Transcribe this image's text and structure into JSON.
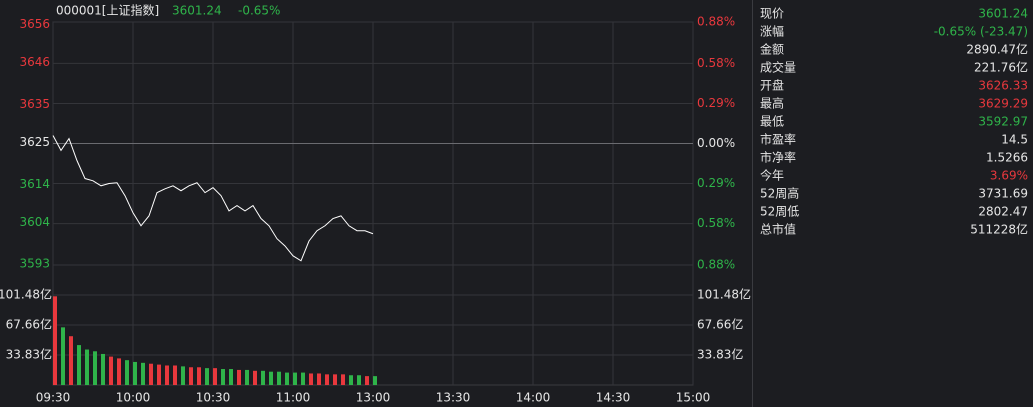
{
  "chart_data": {
    "type": "line",
    "title": "000001[上证指数]",
    "price_text": "3601.24",
    "change_text": "-0.65%",
    "up_color": "#e8383d",
    "down_color": "#2fb44a",
    "flat_color": "#e6e6e6",
    "x": [
      "09:30",
      "09:33",
      "09:36",
      "09:39",
      "09:42",
      "09:45",
      "09:48",
      "09:51",
      "09:54",
      "09:57",
      "10:00",
      "10:03",
      "10:06",
      "10:09",
      "10:12",
      "10:15",
      "10:18",
      "10:21",
      "10:24",
      "10:27",
      "10:30",
      "10:33",
      "10:36",
      "10:39",
      "10:42",
      "10:45",
      "10:48",
      "10:51",
      "10:54",
      "10:57",
      "11:00",
      "11:03",
      "11:06",
      "11:09",
      "11:12",
      "11:15",
      "11:18",
      "11:21",
      "11:24",
      "11:27",
      "11:30"
    ],
    "xlim": [
      "09:30",
      "15:00"
    ],
    "xticks": [
      "09:30",
      "10:00",
      "10:30",
      "11:00",
      "13:00",
      "13:30",
      "14:00",
      "14:30",
      "15:00"
    ],
    "ylim": [
      3592.8,
      3656.6
    ],
    "yticks": [
      3656,
      3646,
      3635,
      3625,
      3614,
      3604,
      3593
    ],
    "y2lim": [
      -0.88,
      0.88
    ],
    "y2ticks": [
      {
        "value": 0.88,
        "label": "0.88%"
      },
      {
        "value": 0.58,
        "label": "0.58%"
      },
      {
        "value": 0.29,
        "label": "0.29%"
      },
      {
        "value": 0,
        "label": "0.00%"
      },
      {
        "value": -0.29,
        "label": "0.29%"
      },
      {
        "value": -0.58,
        "label": "0.58%"
      },
      {
        "value": -0.88,
        "label": "0.88%"
      }
    ],
    "grid": true,
    "series": [
      {
        "color": "#ffffff",
        "values": [
          3626.8,
          3622.9,
          3626.0,
          3620.2,
          3615.5,
          3614.9,
          3613.6,
          3614.2,
          3614.4,
          3611.0,
          3606.5,
          3603.1,
          3605.7,
          3611.8,
          3612.8,
          3613.6,
          3612.3,
          3613.6,
          3614.4,
          3611.8,
          3613.1,
          3611.0,
          3607.0,
          3608.4,
          3607.0,
          3608.4,
          3605.0,
          3603.1,
          3599.7,
          3597.8,
          3595.2,
          3593.9,
          3599.1,
          3601.8,
          3603.1,
          3605.0,
          3605.7,
          3603.1,
          3601.8,
          3601.8,
          3601.0
        ]
      }
    ],
    "volume": {
      "values": [
        100,
        65,
        55,
        45,
        40,
        38,
        35,
        32,
        30,
        28,
        26,
        25,
        24,
        23,
        22,
        22,
        21,
        20,
        20,
        19,
        19,
        18,
        18,
        17,
        17,
        16,
        16,
        15,
        15,
        14,
        14,
        14,
        13,
        13,
        12,
        12,
        12,
        11,
        11,
        10,
        10
      ],
      "ylim": [
        0,
        135.3
      ],
      "yticks": [
        {
          "value": 33.83,
          "label": "33.83亿"
        },
        {
          "value": 67.66,
          "label": "67.66亿"
        },
        {
          "value": 101.48,
          "label": "101.48亿"
        }
      ]
    }
  },
  "quote_panel": {
    "rows": [
      {
        "label": "现价",
        "value": "3601.24",
        "color": "#2fb44a"
      },
      {
        "label": "涨幅",
        "value": "-0.65% (-23.47)",
        "color": "#2fb44a"
      },
      {
        "label": "金额",
        "value": "2890.47亿",
        "color": "#e6e6e6"
      },
      {
        "label": "成交量",
        "value": "221.76亿",
        "color": "#e6e6e6"
      },
      {
        "label": "开盘",
        "value": "3626.33",
        "color": "#e8383d"
      },
      {
        "label": "最高",
        "value": "3629.29",
        "color": "#e8383d"
      },
      {
        "label": "最低",
        "value": "3592.97",
        "color": "#2fb44a"
      },
      {
        "label": "市盈率",
        "value": "14.5",
        "color": "#e6e6e6"
      },
      {
        "label": "市净率",
        "value": "1.5266",
        "color": "#e6e6e6"
      },
      {
        "label": "今年",
        "value": "3.69%",
        "color": "#e8383d"
      },
      {
        "label": "52周高",
        "value": "3731.69",
        "color": "#e6e6e6"
      },
      {
        "label": "52周低",
        "value": "2802.47",
        "color": "#e6e6e6"
      },
      {
        "label": "总市值",
        "value": "511228亿",
        "color": "#e6e6e6"
      }
    ]
  }
}
